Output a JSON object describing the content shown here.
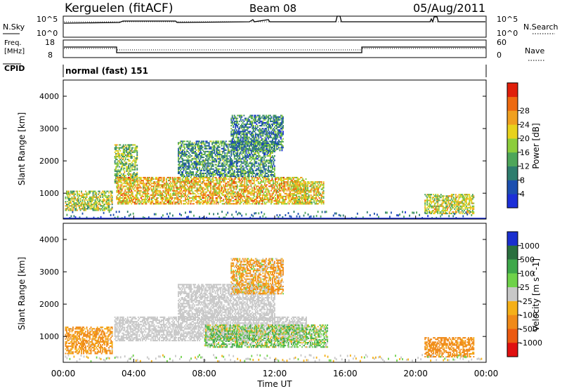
{
  "header": {
    "station": "Kerguelen (fitACF)",
    "beam": "Beam 08",
    "date": "05/Aug/2011"
  },
  "noise_panel": {
    "left_label": "N.Sky",
    "right_label": "N.Search",
    "left_ticks": [
      "10^5",
      "10^0"
    ],
    "right_ticks": [
      "10^5",
      "10^0"
    ]
  },
  "freq_panel": {
    "left_label_1": "Freq.",
    "left_label_2": "[MHz]",
    "right_label": "Nave",
    "left_ticks": [
      "18",
      "8"
    ],
    "right_ticks": [
      "60",
      "0"
    ]
  },
  "cpid": {
    "label": "CPID",
    "value": "normal (fast) 151"
  },
  "chart_data": [
    {
      "type": "heatmap",
      "title": "",
      "ylabel": "Slant Range [km]",
      "xlim_hours": [
        0,
        24
      ],
      "ylim_km": [
        200,
        4500
      ],
      "y_ticks": [
        "1000",
        "2000",
        "3000",
        "4000"
      ],
      "colorbar_label": "Power [dB]",
      "colorbar_ticks": [
        "4",
        "8",
        "12",
        "16",
        "20",
        "24",
        "28"
      ],
      "colorbar_range": [
        0,
        30
      ],
      "colorscale": [
        "#1c2fd8",
        "#1b4fb0",
        "#2e7d6e",
        "#4ea65a",
        "#8ccd3c",
        "#e8d21c",
        "#f0a020",
        "#ee6a10",
        "#e01f0a"
      ],
      "echo_regions": [
        {
          "t_start": 0.1,
          "t_end": 2.8,
          "r_low": 450,
          "r_high": 1050,
          "value": 16
        },
        {
          "t_start": 2.9,
          "t_end": 4.2,
          "r_low": 1300,
          "r_high": 2500,
          "value": 14
        },
        {
          "t_start": 3.0,
          "t_end": 13.8,
          "r_low": 650,
          "r_high": 1500,
          "value": 20
        },
        {
          "t_start": 6.5,
          "t_end": 12.0,
          "r_low": 1500,
          "r_high": 2600,
          "value": 10
        },
        {
          "t_start": 9.5,
          "t_end": 12.5,
          "r_low": 2300,
          "r_high": 3400,
          "value": 9
        },
        {
          "t_start": 13.0,
          "t_end": 14.8,
          "r_low": 650,
          "r_high": 1350,
          "value": 18
        },
        {
          "t_start": 20.5,
          "t_end": 23.3,
          "r_low": 350,
          "r_high": 950,
          "value": 17
        }
      ]
    },
    {
      "type": "heatmap",
      "title": "",
      "ylabel": "Slant Range [km]",
      "xlabel": "Time UT",
      "x_ticks": [
        "00:00",
        "04:00",
        "08:00",
        "12:00",
        "16:00",
        "20:00",
        "00:00"
      ],
      "xlim_hours": [
        0,
        24
      ],
      "ylim_km": [
        200,
        4500
      ],
      "y_ticks": [
        "1000",
        "2000",
        "3000",
        "4000"
      ],
      "colorbar_label": "Velocity [m s^-1]",
      "colorbar_ticks": [
        "1000",
        "500",
        "100",
        "25",
        "-25",
        "-100",
        "-500",
        "-1000"
      ],
      "colorscale": [
        "#1a2fcf",
        "#2a6f3f",
        "#3ea84a",
        "#6fd24a",
        "#c8c8c8",
        "#f5b018",
        "#f08a18",
        "#ec5a10",
        "#e01010"
      ],
      "echo_regions": [
        {
          "t_start": 0.1,
          "t_end": 2.8,
          "r_low": 450,
          "r_high": 1300,
          "value": -150
        },
        {
          "t_start": 2.9,
          "t_end": 13.8,
          "r_low": 850,
          "r_high": 1600,
          "value": 0
        },
        {
          "t_start": 6.5,
          "t_end": 12.0,
          "r_low": 1500,
          "r_high": 2600,
          "value": 0
        },
        {
          "t_start": 8.0,
          "t_end": 15.0,
          "r_low": 650,
          "r_high": 1350,
          "value": 60
        },
        {
          "t_start": 9.5,
          "t_end": 12.5,
          "r_low": 2300,
          "r_high": 3400,
          "value": -90
        },
        {
          "t_start": 20.5,
          "t_end": 23.3,
          "r_low": 350,
          "r_high": 950,
          "value": -200
        }
      ]
    }
  ]
}
